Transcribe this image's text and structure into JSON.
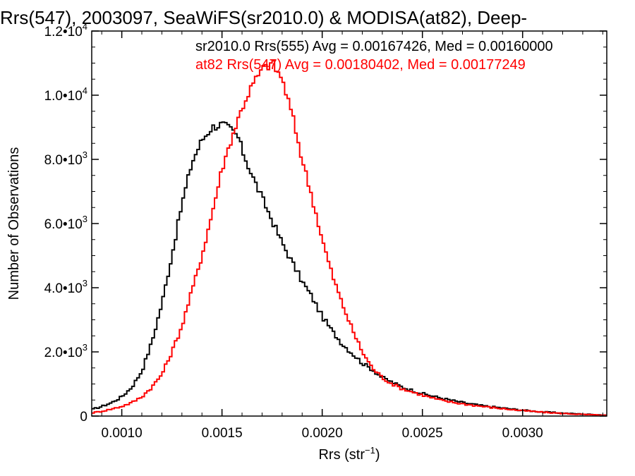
{
  "chart_data": {
    "type": "line",
    "title": "Rrs(547), 2003097, SeaWiFS(sr2010.0) & MODISA(at82), Deep-",
    "xlabel": "Rrs (str",
    "xlabel_sup": "−1",
    "xlabel_tail": ")",
    "ylabel": "Number of Observations",
    "xlim": [
      0.00085,
      0.00342
    ],
    "ylim": [
      0,
      12000
    ],
    "x_ticks": [
      {
        "value": 0.001,
        "label": "0.0010"
      },
      {
        "value": 0.0015,
        "label": "0.0015"
      },
      {
        "value": 0.002,
        "label": "0.0020"
      },
      {
        "value": 0.0025,
        "label": "0.0025"
      },
      {
        "value": 0.003,
        "label": "0.0030"
      }
    ],
    "y_ticks": [
      {
        "value": 0,
        "mant": "0",
        "exp": ""
      },
      {
        "value": 2000,
        "mant": "2.0•10",
        "exp": "3"
      },
      {
        "value": 4000,
        "mant": "4.0•10",
        "exp": "3"
      },
      {
        "value": 6000,
        "mant": "6.0•10",
        "exp": "3"
      },
      {
        "value": 8000,
        "mant": "8.0•10",
        "exp": "3"
      },
      {
        "value": 10000,
        "mant": "1.0•10",
        "exp": "4"
      },
      {
        "value": 12000,
        "mant": "1.2•10",
        "exp": "4"
      }
    ],
    "legend_position": "top-right",
    "series": [
      {
        "name": "sr2010.0 Rrs(555) Avg = 0.00167426, Med = 0.00160000",
        "color": "#000000",
        "x": [
          0.00085,
          0.0009,
          0.00095,
          0.001,
          0.00105,
          0.0011,
          0.00115,
          0.0012,
          0.00125,
          0.0013,
          0.00135,
          0.0014,
          0.00145,
          0.0015,
          0.00155,
          0.00158,
          0.0016,
          0.00165,
          0.0017,
          0.00175,
          0.0018,
          0.00185,
          0.0019,
          0.00195,
          0.002,
          0.00205,
          0.0021,
          0.00215,
          0.0022,
          0.00225,
          0.0023,
          0.00235,
          0.0024,
          0.0025,
          0.0026,
          0.0027,
          0.0028,
          0.0029,
          0.003,
          0.0031,
          0.0032,
          0.0033,
          0.00342
        ],
        "y": [
          200,
          300,
          420,
          600,
          900,
          1400,
          2300,
          3500,
          5000,
          6600,
          7900,
          8600,
          9000,
          9100,
          8900,
          8700,
          8300,
          7500,
          6800,
          6100,
          5400,
          4800,
          4200,
          3700,
          3100,
          2650,
          2250,
          1950,
          1650,
          1450,
          1200,
          1050,
          900,
          700,
          550,
          420,
          320,
          250,
          180,
          130,
          90,
          60,
          30
        ]
      },
      {
        "name": "at82 Rrs(547) Avg = 0.00180402, Med = 0.00177249",
        "color": "#ff0000",
        "x": [
          0.00085,
          0.0009,
          0.00095,
          0.001,
          0.00105,
          0.0011,
          0.00115,
          0.0012,
          0.00125,
          0.0013,
          0.00135,
          0.0014,
          0.00145,
          0.0015,
          0.00155,
          0.0016,
          0.00165,
          0.0017,
          0.00175,
          0.0018,
          0.00185,
          0.0019,
          0.00195,
          0.002,
          0.00205,
          0.0021,
          0.00215,
          0.0022,
          0.00225,
          0.0023,
          0.00235,
          0.0024,
          0.0025,
          0.0026,
          0.0027,
          0.0028,
          0.0029,
          0.003,
          0.0031,
          0.0032,
          0.0033,
          0.00342
        ],
        "y": [
          100,
          150,
          220,
          300,
          420,
          600,
          900,
          1300,
          2000,
          2800,
          3900,
          5000,
          6300,
          7700,
          8700,
          9600,
          10300,
          10800,
          11000,
          10500,
          9400,
          8000,
          6800,
          5500,
          4400,
          3500,
          2700,
          2000,
          1500,
          1200,
          1000,
          850,
          650,
          480,
          380,
          300,
          230,
          170,
          120,
          80,
          50,
          20
        ]
      }
    ]
  }
}
